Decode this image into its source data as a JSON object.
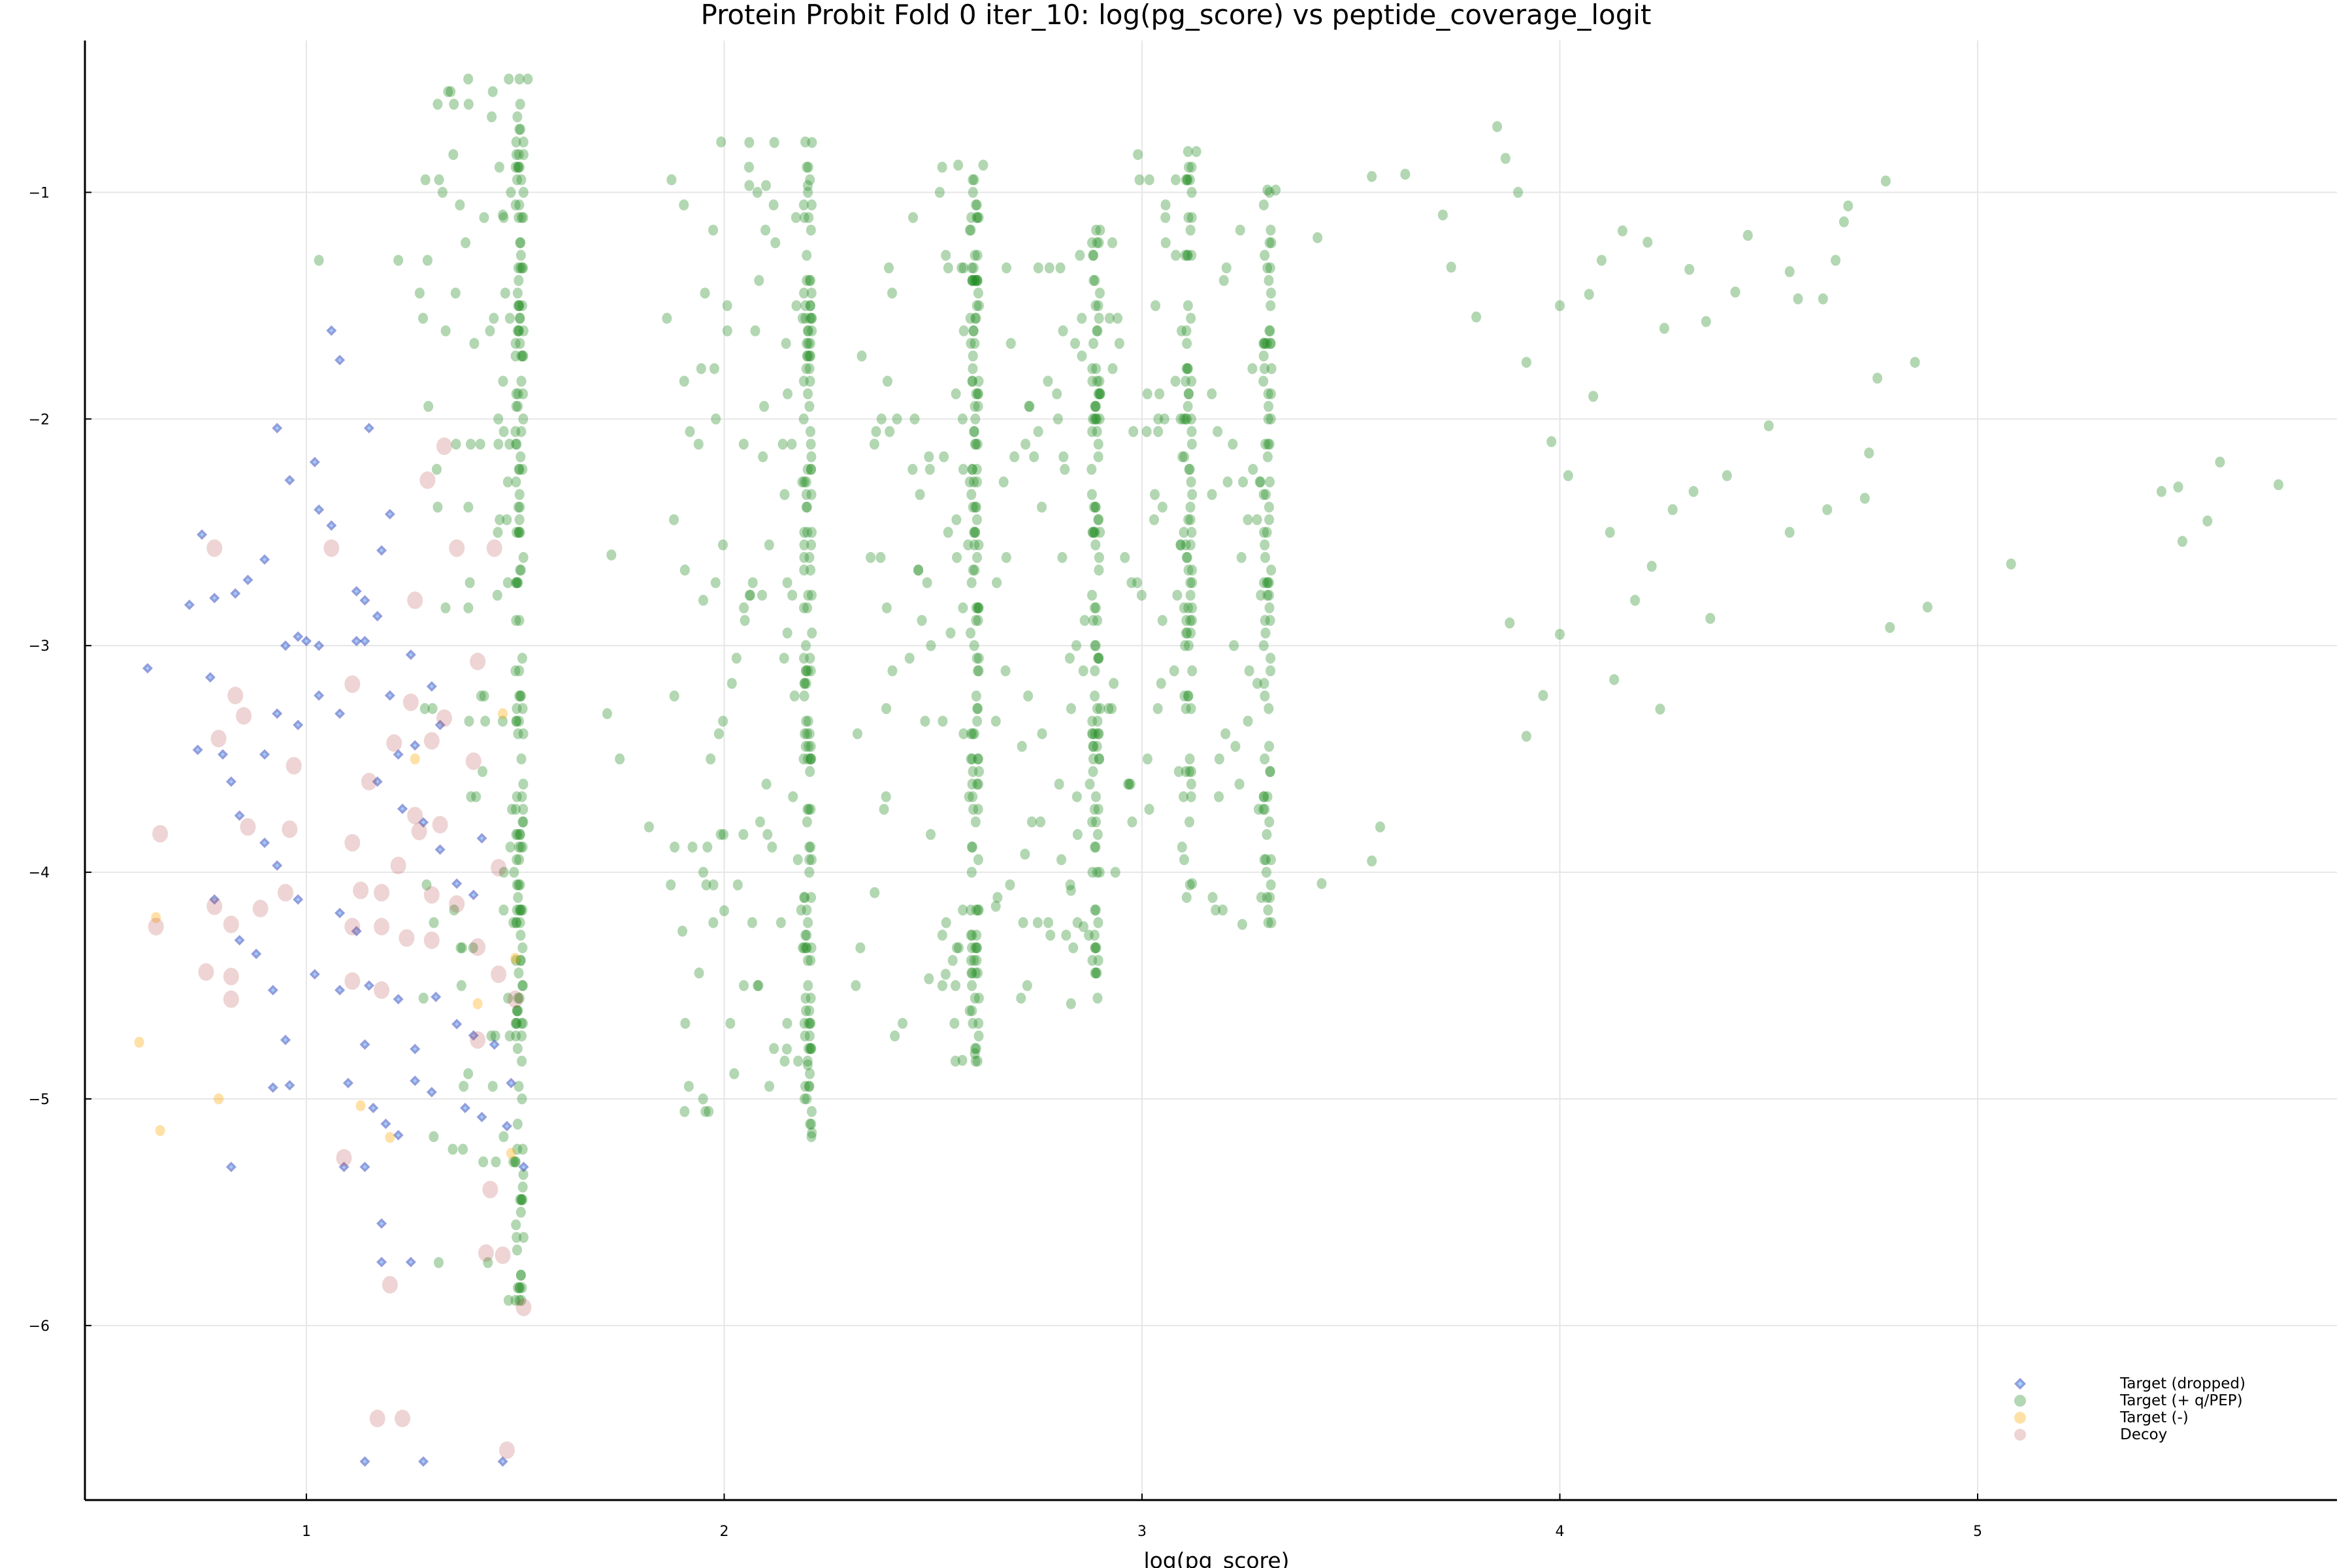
{
  "title": "Protein Probit Fold 0 iter_10: log(pg_score) vs peptide_coverage_logit",
  "legend": {
    "items": [
      {
        "label": "Target (dropped)",
        "marker": "diamond",
        "color": "#3b4cc0"
      },
      {
        "label": "Target (+ q/PEP)",
        "marker": "circle",
        "color": "#228b22"
      },
      {
        "label": "Target (-)",
        "marker": "circle",
        "color": "#ffa500"
      },
      {
        "label": "Decoy",
        "marker": "circle",
        "color": "#b03a3a"
      }
    ]
  },
  "chart_data": {
    "type": "scatter",
    "title": "Protein Probit Fold 0 iter_10: log(pg_score) vs peptide_coverage_logit",
    "xlabel": "log(pg_score)",
    "ylabel": "",
    "xlim": [
      0.47,
      5.86
    ],
    "ylim": [
      -6.77,
      -0.33
    ],
    "xticks": [
      1,
      2,
      3,
      4,
      5
    ],
    "xtick_labels": [
      "1",
      "2",
      "3",
      "4",
      "5"
    ],
    "yticks": [
      -1,
      -2,
      -3,
      -4,
      -5,
      -6
    ],
    "ytick_labels": [
      "−1",
      "−2",
      "−3",
      "−4",
      "−5",
      "−6"
    ],
    "grid": true,
    "legend_position": "bottom-right",
    "series": [
      {
        "name": "Target (+ q/PEP)",
        "marker": "circle",
        "color": "#228b22",
        "alpha": 0.35,
        "column_bands": [
          {
            "x": 1.52,
            "y_range": [
              -5.9,
              -0.5
            ],
            "spread_left": 0.25,
            "density": 260
          },
          {
            "x": 2.21,
            "y_range": [
              -5.15,
              -0.78
            ],
            "spread_left": 0.35,
            "density": 230
          },
          {
            "x": 2.61,
            "y_range": [
              -4.85,
              -0.88
            ],
            "spread_left": 0.3,
            "density": 200
          },
          {
            "x": 2.9,
            "y_range": [
              -4.6,
              -1.17
            ],
            "spread_left": 0.25,
            "density": 160
          },
          {
            "x": 3.12,
            "y_range": [
              -4.1,
              -0.82
            ],
            "spread_left": 0.2,
            "density": 130
          },
          {
            "x": 3.31,
            "y_range": [
              -4.25,
              -0.99
            ],
            "spread_left": 0.15,
            "density": 110
          }
        ],
        "points": [
          [
            1.51,
            -0.5
          ],
          [
            1.53,
            -0.5
          ],
          [
            1.03,
            -1.3
          ],
          [
            1.22,
            -1.3
          ],
          [
            1.29,
            -1.3
          ],
          [
            1.47,
            -1.1
          ],
          [
            2.06,
            -0.78
          ],
          [
            2.12,
            -0.78
          ],
          [
            2.21,
            -0.78
          ],
          [
            2.06,
            -0.97
          ],
          [
            2.1,
            -0.97
          ],
          [
            2.2,
            -0.97
          ],
          [
            2.56,
            -0.88
          ],
          [
            2.62,
            -0.88
          ],
          [
            3.11,
            -0.82
          ],
          [
            3.13,
            -0.82
          ],
          [
            3.3,
            -0.99
          ],
          [
            3.32,
            -0.99
          ],
          [
            3.42,
            -1.2
          ],
          [
            3.55,
            -0.93
          ],
          [
            3.63,
            -0.92
          ],
          [
            3.72,
            -1.1
          ],
          [
            3.85,
            -0.71
          ],
          [
            3.87,
            -0.85
          ],
          [
            3.9,
            -1.0
          ],
          [
            3.74,
            -1.33
          ],
          [
            3.8,
            -1.55
          ],
          [
            3.92,
            -1.75
          ],
          [
            4.0,
            -1.5
          ],
          [
            4.07,
            -1.45
          ],
          [
            4.1,
            -1.3
          ],
          [
            4.15,
            -1.17
          ],
          [
            4.21,
            -1.22
          ],
          [
            4.25,
            -1.6
          ],
          [
            4.31,
            -1.34
          ],
          [
            4.35,
            -1.57
          ],
          [
            4.42,
            -1.44
          ],
          [
            4.45,
            -1.19
          ],
          [
            4.57,
            -1.47
          ],
          [
            4.63,
            -1.47
          ],
          [
            4.68,
            -1.13
          ],
          [
            4.69,
            -1.06
          ],
          [
            4.78,
            -0.95
          ],
          [
            4.55,
            -1.35
          ],
          [
            4.66,
            -1.3
          ],
          [
            3.98,
            -2.1
          ],
          [
            4.02,
            -2.25
          ],
          [
            4.08,
            -1.9
          ],
          [
            4.12,
            -2.5
          ],
          [
            4.18,
            -2.8
          ],
          [
            4.22,
            -2.65
          ],
          [
            4.27,
            -2.4
          ],
          [
            4.32,
            -2.32
          ],
          [
            4.36,
            -2.88
          ],
          [
            4.4,
            -2.25
          ],
          [
            4.5,
            -2.03
          ],
          [
            4.55,
            -2.5
          ],
          [
            4.64,
            -2.4
          ],
          [
            4.73,
            -2.35
          ],
          [
            4.74,
            -2.15
          ],
          [
            4.76,
            -1.82
          ],
          [
            4.79,
            -2.92
          ],
          [
            4.88,
            -2.83
          ],
          [
            4.85,
            -1.75
          ],
          [
            5.08,
            -2.64
          ],
          [
            5.44,
            -2.32
          ],
          [
            5.48,
            -2.3
          ],
          [
            5.49,
            -2.54
          ],
          [
            5.55,
            -2.45
          ],
          [
            5.58,
            -2.19
          ],
          [
            5.72,
            -2.29
          ],
          [
            4.0,
            -2.95
          ],
          [
            4.13,
            -3.15
          ],
          [
            4.24,
            -3.28
          ],
          [
            3.96,
            -3.22
          ],
          [
            3.88,
            -2.9
          ],
          [
            3.92,
            -3.4
          ],
          [
            3.55,
            -3.95
          ],
          [
            3.57,
            -3.8
          ],
          [
            3.43,
            -4.05
          ],
          [
            3.24,
            -4.23
          ],
          [
            3.12,
            -4.05
          ],
          [
            2.83,
            -4.08
          ],
          [
            2.86,
            -4.24
          ],
          [
            2.72,
            -3.92
          ],
          [
            2.83,
            -4.58
          ],
          [
            2.65,
            -4.15
          ],
          [
            2.53,
            -4.45
          ],
          [
            2.49,
            -4.47
          ],
          [
            2.57,
            -4.83
          ],
          [
            2.6,
            -4.8
          ],
          [
            2.08,
            -4.5
          ],
          [
            2.15,
            -4.78
          ],
          [
            2.2,
            -4.85
          ],
          [
            2.21,
            -5.15
          ],
          [
            2.36,
            -4.09
          ],
          [
            2.0,
            -4.17
          ],
          [
            1.9,
            -4.26
          ],
          [
            1.95,
            -4.0
          ],
          [
            1.82,
            -3.8
          ],
          [
            1.72,
            -3.3
          ],
          [
            1.75,
            -3.5
          ],
          [
            1.73,
            -2.6
          ],
          [
            1.95,
            -2.8
          ],
          [
            1.98,
            -2.0
          ]
        ]
      },
      {
        "name": "Target (dropped)",
        "marker": "diamond",
        "color": "#3b4cc0",
        "points": [
          [
            0.62,
            -3.1
          ],
          [
            0.75,
            -2.51
          ],
          [
            0.78,
            -2.79
          ],
          [
            0.72,
            -2.82
          ],
          [
            0.9,
            -2.62
          ],
          [
            0.86,
            -2.71
          ],
          [
            0.83,
            -2.77
          ],
          [
            0.93,
            -2.04
          ],
          [
            0.96,
            -2.27
          ],
          [
            1.02,
            -2.19
          ],
          [
            1.06,
            -1.61
          ],
          [
            1.08,
            -1.74
          ],
          [
            1.03,
            -2.4
          ],
          [
            1.06,
            -2.47
          ],
          [
            1.15,
            -2.04
          ],
          [
            1.2,
            -2.42
          ],
          [
            1.18,
            -2.58
          ],
          [
            1.0,
            -2.98
          ],
          [
            1.03,
            -3.0
          ],
          [
            1.12,
            -2.98
          ],
          [
            1.14,
            -2.98
          ],
          [
            0.98,
            -2.96
          ],
          [
            0.95,
            -3.0
          ],
          [
            1.12,
            -2.76
          ],
          [
            1.14,
            -2.8
          ],
          [
            1.17,
            -2.87
          ],
          [
            0.77,
            -3.14
          ],
          [
            0.74,
            -3.46
          ],
          [
            0.8,
            -3.48
          ],
          [
            0.82,
            -3.6
          ],
          [
            0.84,
            -3.75
          ],
          [
            0.9,
            -3.48
          ],
          [
            0.93,
            -3.3
          ],
          [
            0.98,
            -3.35
          ],
          [
            1.03,
            -3.22
          ],
          [
            1.08,
            -3.3
          ],
          [
            1.2,
            -3.22
          ],
          [
            1.26,
            -3.44
          ],
          [
            1.22,
            -3.48
          ],
          [
            1.32,
            -3.35
          ],
          [
            1.3,
            -3.18
          ],
          [
            1.25,
            -3.04
          ],
          [
            1.17,
            -3.6
          ],
          [
            1.23,
            -3.72
          ],
          [
            1.28,
            -3.78
          ],
          [
            1.32,
            -3.9
          ],
          [
            1.36,
            -4.05
          ],
          [
            1.4,
            -4.1
          ],
          [
            1.42,
            -3.85
          ],
          [
            0.9,
            -3.87
          ],
          [
            0.93,
            -3.97
          ],
          [
            0.98,
            -4.12
          ],
          [
            1.08,
            -4.18
          ],
          [
            1.12,
            -4.26
          ],
          [
            0.88,
            -4.36
          ],
          [
            0.78,
            -4.12
          ],
          [
            1.02,
            -4.45
          ],
          [
            1.08,
            -4.52
          ],
          [
            1.15,
            -4.5
          ],
          [
            1.22,
            -4.56
          ],
          [
            1.31,
            -4.55
          ],
          [
            1.36,
            -4.67
          ],
          [
            1.4,
            -4.72
          ],
          [
            0.84,
            -4.3
          ],
          [
            0.92,
            -4.52
          ],
          [
            0.95,
            -4.74
          ],
          [
            1.14,
            -4.76
          ],
          [
            1.26,
            -4.78
          ],
          [
            1.45,
            -4.76
          ],
          [
            1.49,
            -4.93
          ],
          [
            0.92,
            -4.95
          ],
          [
            0.96,
            -4.94
          ],
          [
            1.1,
            -4.93
          ],
          [
            1.16,
            -5.04
          ],
          [
            1.19,
            -5.11
          ],
          [
            1.26,
            -4.92
          ],
          [
            1.3,
            -4.97
          ],
          [
            1.38,
            -5.04
          ],
          [
            1.42,
            -5.08
          ],
          [
            1.48,
            -5.12
          ],
          [
            0.82,
            -5.3
          ],
          [
            1.09,
            -5.3
          ],
          [
            1.14,
            -5.3
          ],
          [
            1.22,
            -5.16
          ],
          [
            1.52,
            -5.3
          ],
          [
            1.18,
            -5.55
          ],
          [
            1.18,
            -5.72
          ],
          [
            1.25,
            -5.72
          ],
          [
            1.47,
            -6.6
          ],
          [
            1.14,
            -6.6
          ],
          [
            1.28,
            -6.6
          ]
        ]
      },
      {
        "name": "Target (-)",
        "marker": "circle",
        "color": "#ffa500",
        "alpha": 0.35,
        "points": [
          [
            0.64,
            -4.2
          ],
          [
            0.6,
            -4.75
          ],
          [
            0.79,
            -5.0
          ],
          [
            0.65,
            -5.14
          ],
          [
            1.13,
            -5.03
          ],
          [
            1.2,
            -5.17
          ],
          [
            1.49,
            -5.24
          ],
          [
            1.41,
            -4.58
          ],
          [
            1.26,
            -3.5
          ],
          [
            1.47,
            -3.3
          ],
          [
            1.5,
            -4.38
          ]
        ]
      },
      {
        "name": "Decoy",
        "marker": "circle",
        "color": "#b03a3a",
        "alpha": 0.22,
        "points": [
          [
            1.33,
            -2.12
          ],
          [
            1.29,
            -2.27
          ],
          [
            0.78,
            -2.57
          ],
          [
            1.06,
            -2.57
          ],
          [
            1.36,
            -2.57
          ],
          [
            1.45,
            -2.57
          ],
          [
            1.26,
            -2.8
          ],
          [
            1.41,
            -3.07
          ],
          [
            1.11,
            -3.17
          ],
          [
            0.83,
            -3.22
          ],
          [
            0.85,
            -3.31
          ],
          [
            0.79,
            -3.41
          ],
          [
            1.25,
            -3.25
          ],
          [
            1.33,
            -3.32
          ],
          [
            1.3,
            -3.42
          ],
          [
            1.21,
            -3.43
          ],
          [
            1.4,
            -3.51
          ],
          [
            0.97,
            -3.53
          ],
          [
            1.15,
            -3.6
          ],
          [
            1.26,
            -3.75
          ],
          [
            1.27,
            -3.82
          ],
          [
            1.32,
            -3.79
          ],
          [
            0.86,
            -3.8
          ],
          [
            0.96,
            -3.81
          ],
          [
            0.65,
            -3.83
          ],
          [
            1.11,
            -3.87
          ],
          [
            1.22,
            -3.97
          ],
          [
            1.46,
            -3.98
          ],
          [
            1.13,
            -4.08
          ],
          [
            1.18,
            -4.09
          ],
          [
            1.3,
            -4.1
          ],
          [
            0.95,
            -4.09
          ],
          [
            0.89,
            -4.16
          ],
          [
            0.78,
            -4.15
          ],
          [
            0.82,
            -4.23
          ],
          [
            0.64,
            -4.24
          ],
          [
            1.11,
            -4.24
          ],
          [
            1.18,
            -4.24
          ],
          [
            1.24,
            -4.29
          ],
          [
            1.3,
            -4.3
          ],
          [
            1.36,
            -4.14
          ],
          [
            1.41,
            -4.33
          ],
          [
            0.76,
            -4.44
          ],
          [
            0.82,
            -4.46
          ],
          [
            1.11,
            -4.48
          ],
          [
            1.18,
            -4.52
          ],
          [
            0.82,
            -4.56
          ],
          [
            1.46,
            -4.45
          ],
          [
            1.5,
            -4.56
          ],
          [
            1.41,
            -4.74
          ],
          [
            1.09,
            -5.26
          ],
          [
            1.44,
            -5.4
          ],
          [
            1.43,
            -5.68
          ],
          [
            1.47,
            -5.69
          ],
          [
            1.2,
            -5.82
          ],
          [
            1.52,
            -5.92
          ],
          [
            1.17,
            -6.41
          ],
          [
            1.23,
            -6.41
          ],
          [
            1.48,
            -6.55
          ]
        ]
      }
    ]
  },
  "axes": {
    "xlabel": "log(pg_score)",
    "xticks": [
      "1",
      "2",
      "3",
      "4",
      "5"
    ],
    "yticks": [
      "−1",
      "−2",
      "−3",
      "−4",
      "−5",
      "−6"
    ]
  }
}
